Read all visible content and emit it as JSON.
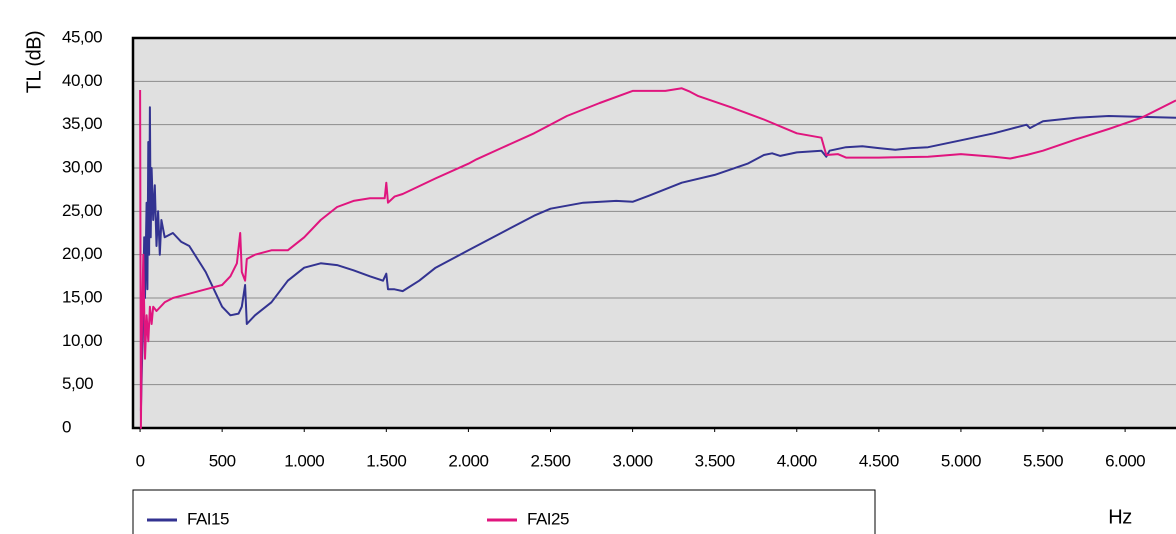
{
  "chart_data": {
    "type": "line",
    "y_label": "TL (dB)",
    "x_label": "Hz",
    "xlim": [
      -43,
      6310
    ],
    "ylim": [
      0,
      45
    ],
    "xticks": [
      0,
      500,
      {
        "value": 1000,
        "label": "1.000"
      },
      {
        "value": 1500,
        "label": "1.500"
      },
      {
        "value": 2000,
        "label": "2.000"
      },
      {
        "value": 2500,
        "label": "2.500"
      },
      {
        "value": 3000,
        "label": "3.000"
      },
      {
        "value": 3500,
        "label": "3.500"
      },
      {
        "value": 4000,
        "label": "4.000"
      },
      {
        "value": 4500,
        "label": "4.500"
      },
      {
        "value": 5000,
        "label": "5.000"
      },
      {
        "value": 5500,
        "label": "5.500"
      },
      {
        "value": 6000,
        "label": "6.000"
      }
    ],
    "yticks": [
      0,
      {
        "value": 5,
        "label": "5,00"
      },
      {
        "value": 10,
        "label": "10,00"
      },
      {
        "value": 15,
        "label": "15,00"
      },
      {
        "value": 20,
        "label": "20,00"
      },
      {
        "value": 25,
        "label": "25,00"
      },
      {
        "value": 30,
        "label": "30,00"
      },
      {
        "value": 35,
        "label": "35,00"
      },
      {
        "value": 40,
        "label": "40,00"
      },
      {
        "value": 45,
        "label": "45,00"
      }
    ],
    "grid": true,
    "series": [
      {
        "name": "FAI15",
        "color": "#333391",
        "x": [
          5,
          15,
          25,
          30,
          40,
          45,
          50,
          55,
          60,
          65,
          70,
          80,
          90,
          100,
          110,
          120,
          130,
          150,
          200,
          250,
          300,
          400,
          500,
          550,
          600,
          620,
          640,
          650,
          700,
          800,
          900,
          1000,
          1100,
          1200,
          1300,
          1400,
          1480,
          1500,
          1510,
          1550,
          1600,
          1700,
          1800,
          2000,
          2200,
          2400,
          2500,
          2700,
          2900,
          3000,
          3100,
          3300,
          3500,
          3700,
          3800,
          3850,
          3900,
          4000,
          4150,
          4180,
          4200,
          4300,
          4400,
          4500,
          4600,
          4700,
          4800,
          5000,
          5200,
          5400,
          5420,
          5500,
          5700,
          5900,
          6100,
          6310
        ],
        "values": [
          2,
          10,
          22,
          15,
          26,
          16,
          33,
          20,
          37,
          22,
          30,
          24,
          28,
          21,
          25,
          20,
          24,
          22,
          22.5,
          21.5,
          21,
          18,
          14,
          13,
          13.2,
          14,
          16.5,
          12,
          13,
          14.5,
          17,
          18.5,
          19,
          18.8,
          18.2,
          17.5,
          17,
          17.8,
          16,
          16,
          15.8,
          17,
          18.5,
          20.5,
          22.5,
          24.5,
          25.3,
          26,
          26.2,
          26.1,
          26.8,
          28.3,
          29.2,
          30.5,
          31.5,
          31.7,
          31.4,
          31.8,
          32,
          31.3,
          32,
          32.4,
          32.5,
          32.3,
          32.1,
          32.3,
          32.4,
          33.2,
          34,
          35,
          34.6,
          35.4,
          35.8,
          36,
          35.9,
          35.8
        ]
      },
      {
        "name": "FAI25",
        "color": "#e0157e",
        "x": [
          0,
          5,
          10,
          20,
          30,
          40,
          50,
          60,
          70,
          80,
          100,
          150,
          200,
          300,
          400,
          500,
          550,
          590,
          610,
          620,
          640,
          650,
          700,
          800,
          900,
          1000,
          1100,
          1200,
          1300,
          1400,
          1490,
          1500,
          1510,
          1550,
          1600,
          1800,
          2000,
          2050,
          2200,
          2400,
          2600,
          2800,
          3000,
          3200,
          3300,
          3350,
          3400,
          3600,
          3800,
          4000,
          4150,
          4180,
          4250,
          4300,
          4500,
          4800,
          5000,
          5200,
          5300,
          5400,
          5500,
          5700,
          5900,
          6100,
          6310
        ],
        "values": [
          39,
          0,
          10,
          20,
          8,
          13,
          10,
          14,
          12,
          14,
          13.5,
          14.5,
          15,
          15.5,
          16,
          16.5,
          17.5,
          19,
          22.5,
          18,
          17,
          19.5,
          20,
          20.5,
          20.5,
          22,
          24,
          25.5,
          26.2,
          26.5,
          26.5,
          28.3,
          26,
          26.7,
          27,
          28.8,
          30.5,
          31,
          32.3,
          34,
          36,
          37.5,
          38.9,
          38.9,
          39.2,
          38.8,
          38.3,
          37,
          35.6,
          34,
          33.5,
          31.5,
          31.6,
          31.2,
          31.2,
          31.3,
          31.6,
          31.3,
          31.1,
          31.5,
          32,
          33.3,
          34.5,
          35.8,
          37.8
        ]
      }
    ]
  }
}
